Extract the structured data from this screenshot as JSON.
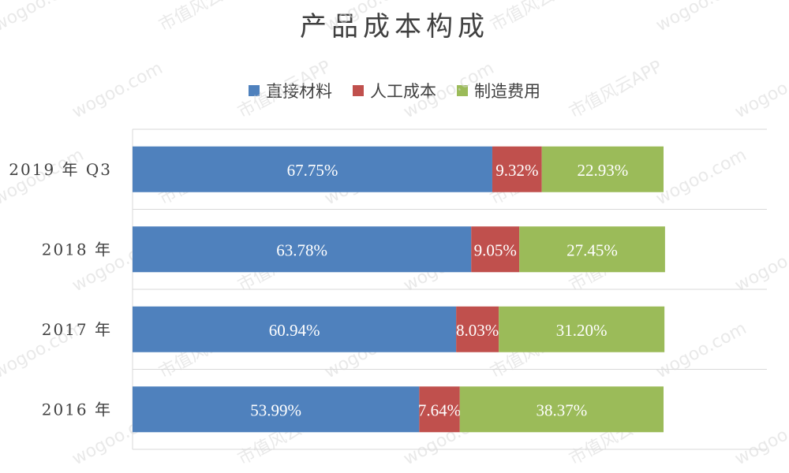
{
  "chart_data": {
    "type": "bar",
    "orientation": "horizontal",
    "stacked": true,
    "title": "产品成本构成",
    "categories": [
      "2019 年 Q3",
      "2018 年",
      "2017 年",
      "2016 年"
    ],
    "series": [
      {
        "name": "直接材料",
        "color": "#4F81BD",
        "values": [
          67.75,
          63.78,
          60.94,
          53.99
        ],
        "labels": [
          "67.75%",
          "63.78%",
          "60.94%",
          "53.99%"
        ]
      },
      {
        "name": "人工成本",
        "color": "#C0504D",
        "values": [
          9.32,
          9.05,
          8.03,
          7.64
        ],
        "labels": [
          "9.32%",
          "9.05%",
          "8.03%",
          "7.64%"
        ]
      },
      {
        "name": "制造费用",
        "color": "#9BBB59",
        "values": [
          22.93,
          27.45,
          31.2,
          38.37
        ],
        "labels": [
          "22.93%",
          "27.45%",
          "31.20%",
          "38.37%"
        ]
      }
    ],
    "xlim": [
      0,
      100
    ],
    "grid": true,
    "legend_position": "top"
  },
  "watermarks": [
    "wogoo.com",
    "市值风云APP"
  ]
}
